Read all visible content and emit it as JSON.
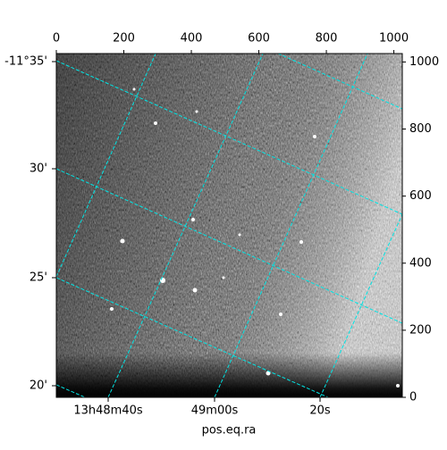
{
  "chart_data": {
    "type": "image",
    "xlabel": "pos.eq.ra",
    "xlim": [
      0,
      1025
    ],
    "xticks": [
      0,
      200,
      400,
      600,
      800,
      1000
    ],
    "ylim": [
      0,
      1025
    ],
    "yticks": [
      0,
      200,
      400,
      600,
      800,
      1000
    ],
    "ra_ticks": [
      "13h48m40s",
      "49m00s",
      "20s"
    ],
    "dec_ticks": [
      "-11°35'",
      "30'",
      "25'",
      "20'"
    ]
  }
}
